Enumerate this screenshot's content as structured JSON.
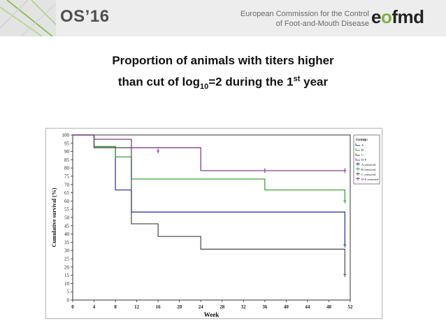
{
  "header": {
    "conference_label": "OS’16",
    "organization_line1": "European Commission for the Control",
    "organization_line2": "of Foot-and-Mouth Disease",
    "logo_text_parts": [
      "e",
      "o",
      "fmd"
    ],
    "accent_color": "#7cb342"
  },
  "slide": {
    "title_line1": "Proportion of animals with titers higher",
    "title_line2_parts": [
      "than cut of log",
      "10",
      "=2 during the 1",
      "st",
      " year"
    ]
  },
  "chart_data": {
    "type": "line",
    "subtype": "kaplan-meier-step",
    "xlabel": "Week",
    "ylabel": "Cumulative survival (%)",
    "xlim": [
      0,
      52
    ],
    "ylim": [
      0,
      100
    ],
    "xticks": [
      0,
      4,
      8,
      12,
      16,
      20,
      24,
      28,
      32,
      36,
      40,
      44,
      48,
      52
    ],
    "yticks": [
      0,
      5,
      10,
      15,
      20,
      25,
      30,
      35,
      40,
      45,
      50,
      55,
      60,
      65,
      70,
      75,
      80,
      85,
      90,
      95,
      100
    ],
    "legend_title": "Group:",
    "legend_position": "right",
    "series": [
      {
        "name": "A",
        "color": "#2e3f9e",
        "x": [
          0,
          4,
          8,
          11,
          51
        ],
        "y": [
          100,
          93,
          66.7,
          53.3,
          33.3
        ],
        "censored": [
          [
            51,
            33.3
          ]
        ]
      },
      {
        "name": "B",
        "color": "#3aa635",
        "x": [
          0,
          4,
          8,
          11,
          36,
          51
        ],
        "y": [
          100,
          93,
          86.7,
          73.3,
          66.7,
          60
        ],
        "censored": [
          [
            51,
            60
          ]
        ]
      },
      {
        "name": "C",
        "color": "#555555",
        "x": [
          0,
          4,
          11,
          16,
          24,
          51
        ],
        "y": [
          100,
          92.3,
          46.2,
          38.5,
          30.8,
          15.4
        ],
        "censored": [
          [
            51,
            15.4
          ]
        ]
      },
      {
        "name": "D-F",
        "color": "#8a3b8f",
        "x": [
          0,
          4,
          11,
          24,
          51
        ],
        "y": [
          100,
          97.4,
          92.3,
          78.4,
          78.4
        ],
        "censored": [
          [
            16,
            90.3
          ],
          [
            36,
            78.4
          ],
          [
            51,
            78.4
          ]
        ]
      }
    ],
    "legend_entries": [
      {
        "label": "A",
        "color": "#2e3f9e",
        "kind": "line"
      },
      {
        "label": "B",
        "color": "#3aa635",
        "kind": "line"
      },
      {
        "label": "C",
        "color": "#555555",
        "kind": "line"
      },
      {
        "label": "D-F",
        "color": "#8a3b8f",
        "kind": "line"
      },
      {
        "label": "A censored",
        "color": "#2e3f9e",
        "kind": "censor"
      },
      {
        "label": "B censored",
        "color": "#3aa635",
        "kind": "censor"
      },
      {
        "label": "C censored",
        "color": "#555555",
        "kind": "censor"
      },
      {
        "label": "D-F censored",
        "color": "#8a3b8f",
        "kind": "censor"
      }
    ]
  }
}
